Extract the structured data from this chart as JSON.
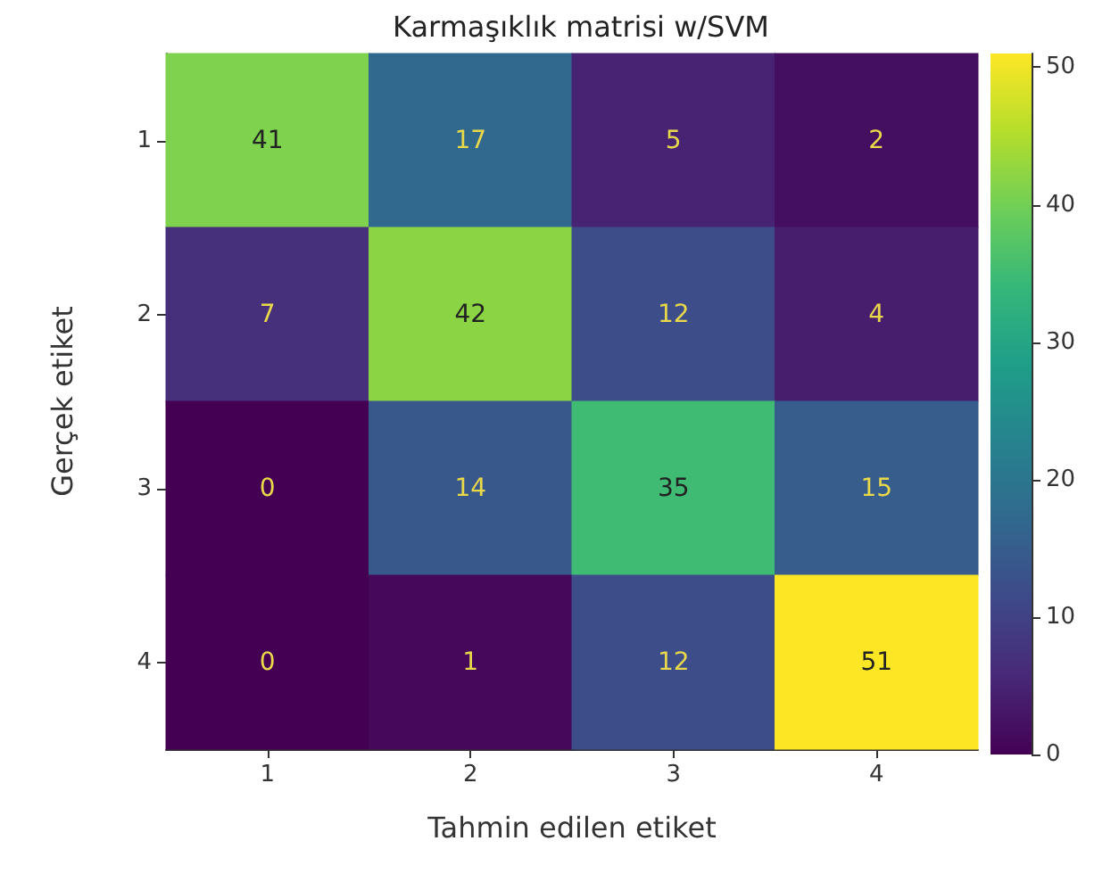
{
  "chart_data": {
    "type": "heatmap",
    "title": "Karmaşıklık matrisi w/SVM",
    "xlabel": "Tahmin edilen etiket",
    "ylabel": "Gerçek etiket",
    "categories": [
      "1",
      "2",
      "3",
      "4"
    ],
    "y_categories": [
      "1",
      "2",
      "3",
      "4"
    ],
    "cells": [
      [
        41,
        17,
        5,
        2
      ],
      [
        7,
        42,
        12,
        4
      ],
      [
        0,
        14,
        35,
        15
      ],
      [
        0,
        1,
        12,
        51
      ]
    ],
    "data_labels": true,
    "clim": [
      0,
      51
    ],
    "cticks": [
      0,
      10,
      20,
      30,
      40,
      50
    ]
  }
}
